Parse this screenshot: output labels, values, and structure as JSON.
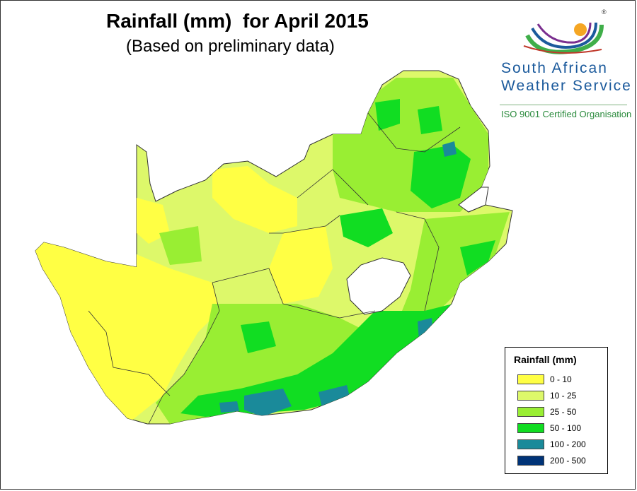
{
  "title": "Rainfall (mm)  for April 2015",
  "subtitle": "(Based on preliminary data)",
  "logo": {
    "line1": "South African",
    "line2": "Weather Service",
    "certification": "ISO 9001 Certified Organisation",
    "registered_mark": "®",
    "colors": {
      "green": "#3fae49",
      "blue": "#1b5a9c",
      "sun": "#f5a623"
    }
  },
  "legend": {
    "title": "Rainfall (mm)",
    "items": [
      {
        "label": "0 - 10",
        "color": "#ffff44"
      },
      {
        "label": "10 - 25",
        "color": "#ddf86a"
      },
      {
        "label": "25 - 50",
        "color": "#99ee33"
      },
      {
        "label": "50 - 100",
        "color": "#11dd22"
      },
      {
        "label": "100 - 200",
        "color": "#1a8a9a"
      },
      {
        "label": "200 - 500",
        "color": "#003377"
      }
    ]
  }
}
